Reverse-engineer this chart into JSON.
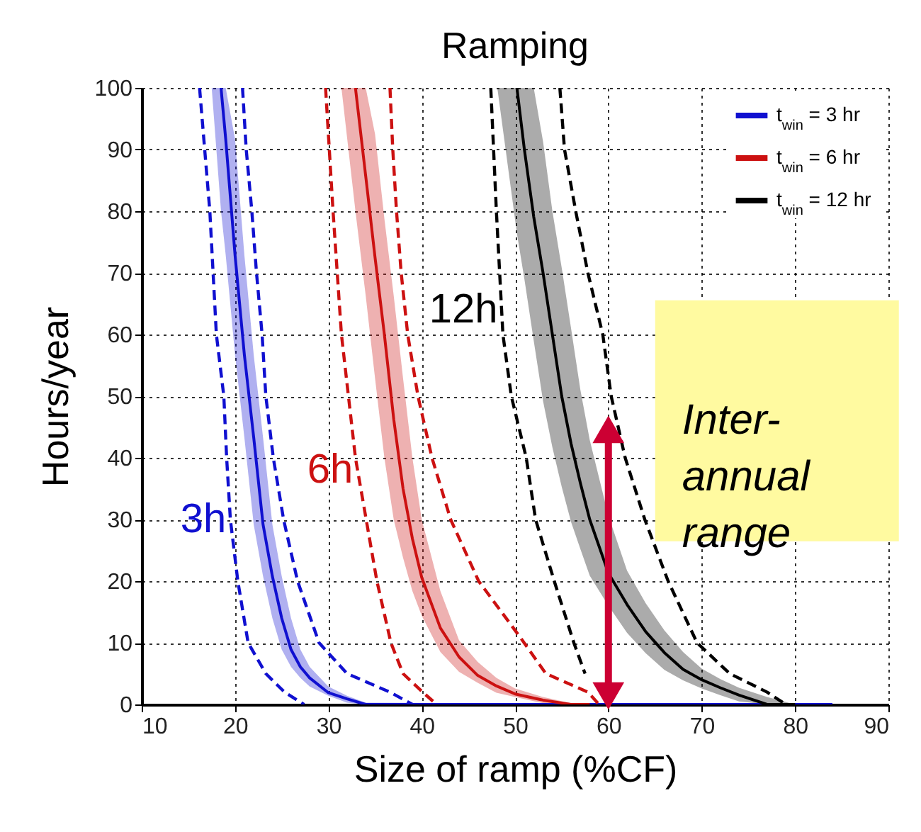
{
  "chart_data": {
    "type": "line",
    "title": "Ramping",
    "xlabel": "Size of ramp (%CF)",
    "ylabel": "Hours/year",
    "xlim": [
      10,
      90
    ],
    "xticks": [
      10,
      20,
      30,
      40,
      50,
      60,
      70,
      80,
      90
    ],
    "ylim": [
      0,
      100
    ],
    "yticks": [
      0,
      10,
      20,
      30,
      40,
      50,
      60,
      70,
      80,
      90,
      100
    ],
    "grid": true,
    "legend": "top right",
    "series": [
      {
        "name": "t$_{win}$ = 3 hr",
        "color": "#1010d0",
        "x": [
          17.5,
          18.5,
          19,
          20,
          21,
          22,
          23,
          24,
          25,
          26,
          27,
          28,
          30,
          32,
          34,
          84
        ],
        "values": [
          null,
          100,
          91.7,
          72.9,
          56.7,
          43.3,
          29.2,
          20.8,
          14,
          8.9,
          6.1,
          4.3,
          1.9,
          0.9,
          0,
          0
        ],
        "upper": [
          100,
          100,
          100,
          91.7,
          72.9,
          56.7,
          43.3,
          29.2,
          20.8,
          14,
          8.9,
          6.1,
          2.9,
          1.4,
          0.3,
          0
        ],
        "lower": [
          100,
          80,
          72.9,
          56.7,
          43.3,
          29.2,
          20.8,
          14,
          8.9,
          6.1,
          4.3,
          2.9,
          1.4,
          0.3,
          0,
          0
        ]
      },
      {
        "name": "t$_{win}$ = 6 hr",
        "color": "#cc1111",
        "x": [
          31.4,
          32.9,
          34,
          35,
          36,
          37,
          38,
          39,
          40,
          42,
          44,
          46,
          48,
          50,
          53,
          56,
          58
        ],
        "values": [
          null,
          100,
          85.7,
          72.5,
          60,
          46.3,
          35,
          26.9,
          20.6,
          12.4,
          7.7,
          4.7,
          3,
          1.7,
          0.7,
          0,
          0
        ],
        "upper": [
          100,
          100,
          100,
          92.5,
          78.8,
          66.3,
          52.9,
          40,
          30,
          18.4,
          10.4,
          6.9,
          4.3,
          2.6,
          1.2,
          0.2,
          0
        ],
        "lower": [
          100,
          80,
          66.3,
          52.9,
          40,
          30,
          23.8,
          18.4,
          14.4,
          8.5,
          5.3,
          3.5,
          1.9,
          1.2,
          0.2,
          0,
          0
        ]
      },
      {
        "name": "t$_{win}$ = 12 hr",
        "color": "#000000",
        "x": [
          48.1,
          50.2,
          51,
          52,
          53,
          54,
          55,
          56,
          57,
          58,
          60,
          62,
          64,
          66,
          68,
          70,
          72,
          74,
          77,
          80
        ],
        "values": [
          null,
          100,
          90,
          79.1,
          70,
          60,
          50,
          42.3,
          35.9,
          30,
          21.3,
          16.2,
          11.8,
          8.4,
          5.7,
          4,
          2.7,
          1.5,
          0,
          0
        ],
        "upper": [
          100,
          100,
          100,
          100,
          91.3,
          80,
          70.8,
          61,
          51,
          42.9,
          30.6,
          21.7,
          16.4,
          12,
          8.5,
          5.8,
          4.1,
          2.7,
          1.2,
          0
        ],
        "lower": [
          100,
          76.4,
          69,
          59,
          49.2,
          41.7,
          35.3,
          29.6,
          25.2,
          20.9,
          16,
          11.6,
          8.3,
          5.6,
          3.9,
          2.6,
          1.5,
          0.5,
          0,
          0
        ]
      },
      {
        "color": "#1010d0",
        "line_style": "dashed",
        "x": [
          16.2,
          17.3,
          18.0,
          18.8,
          19.1,
          19.5,
          20.3,
          21.4,
          23.3,
          25.3,
          27.4
        ],
        "values": [
          100,
          80,
          60,
          50,
          40,
          30,
          20,
          10,
          5,
          2,
          0
        ]
      },
      {
        "color": "#1010d0",
        "line_style": "dashed",
        "x": [
          20.8,
          21.2,
          21.8,
          22.3,
          22.9,
          23.3,
          24.1,
          25.2,
          26.7,
          29,
          32,
          36.6,
          39
        ],
        "values": [
          100,
          90,
          80,
          70,
          60,
          50,
          40,
          30,
          20,
          10,
          5,
          2,
          0
        ]
      },
      {
        "color": "#cc1111",
        "line_style": "dashed",
        "x": [
          29.7,
          30.5,
          31.4,
          32.9,
          35.2,
          36.7,
          38,
          40.1,
          41.6
        ],
        "values": [
          100,
          80,
          60,
          40,
          20,
          10,
          5,
          2,
          0
        ]
      },
      {
        "color": "#cc1111",
        "line_style": "dashed",
        "x": [
          36.6,
          36.9,
          37.3,
          37.8,
          38.5,
          39.6,
          41.1,
          43.1,
          46.1,
          50.5,
          53.3,
          57.8,
          59
        ],
        "values": [
          100,
          90,
          80,
          70,
          60,
          50,
          40,
          30,
          20,
          11,
          5,
          2,
          0
        ]
      },
      {
        "color": "#000000",
        "line_style": "dashed",
        "x": [
          47.4,
          48,
          48.7,
          49.6,
          51.2,
          52.2,
          54.2,
          56.3,
          57.5
        ],
        "values": [
          100,
          80,
          60,
          50,
          40,
          30,
          20,
          10,
          5
        ]
      },
      {
        "color": "#000000",
        "line_style": "dashed",
        "x": [
          54.8,
          55.3,
          56.5,
          57.8,
          59.4,
          60.3,
          61.8,
          63.9,
          66.4,
          69.5,
          73,
          77,
          79
        ],
        "values": [
          100,
          90,
          80,
          70,
          60,
          50,
          40,
          30,
          20,
          10,
          5,
          2,
          0
        ]
      }
    ],
    "annotations": [
      {
        "text": "3h",
        "x": 19.5,
        "y": 30
      },
      {
        "text": "6h",
        "x": 33.1,
        "y": 38
      },
      {
        "text": "12h",
        "x": 48.6,
        "y": 64
      },
      {
        "text": "Inter-annual range",
        "x": 60,
        "y": 46
      }
    ]
  }
}
